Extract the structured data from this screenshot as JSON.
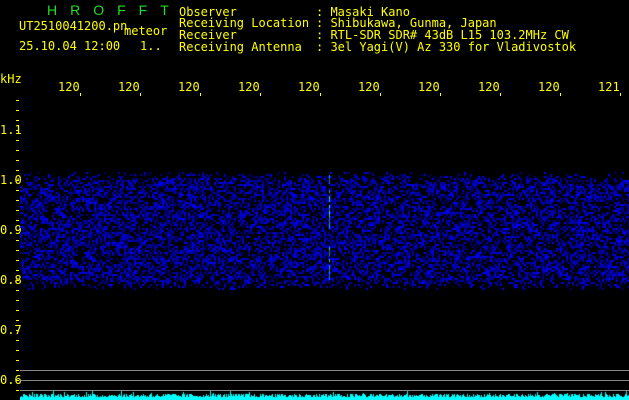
{
  "header": {
    "title": "HROFFT",
    "filename": "UT2510041200.pn",
    "mode": "meteor",
    "datetime": "25.10.04 12:00",
    "count": "1..",
    "info": [
      {
        "label": "Observer",
        "value": ": Masaki Kano"
      },
      {
        "label": "Receiving Location",
        "value": ": Shibukawa, Gunma, Japan"
      },
      {
        "label": "Receiver",
        "value": ": RTL-SDR SDR# 43dB L15 103.2MHz CW"
      },
      {
        "label": "Receiving Antenna",
        "value": ": 3el Yagi(V) Az 330 for Vladivostok"
      }
    ]
  },
  "x_axis": {
    "unit": "kHz",
    "labels": [
      "1201",
      "1202",
      "1203",
      "1204",
      "1205",
      "1206",
      "1207",
      "1208",
      "1209",
      "1210"
    ]
  },
  "y_axis": {
    "labels": [
      "1.1",
      "1.0",
      "0.9",
      "0.8",
      "0.7",
      "0.6"
    ]
  },
  "colors": {
    "text": "#ffff00",
    "title": "#22dd22",
    "noise": "#1a1aff",
    "signal": "#22ffff",
    "level": "#00ffff",
    "grid": "#888888"
  }
}
